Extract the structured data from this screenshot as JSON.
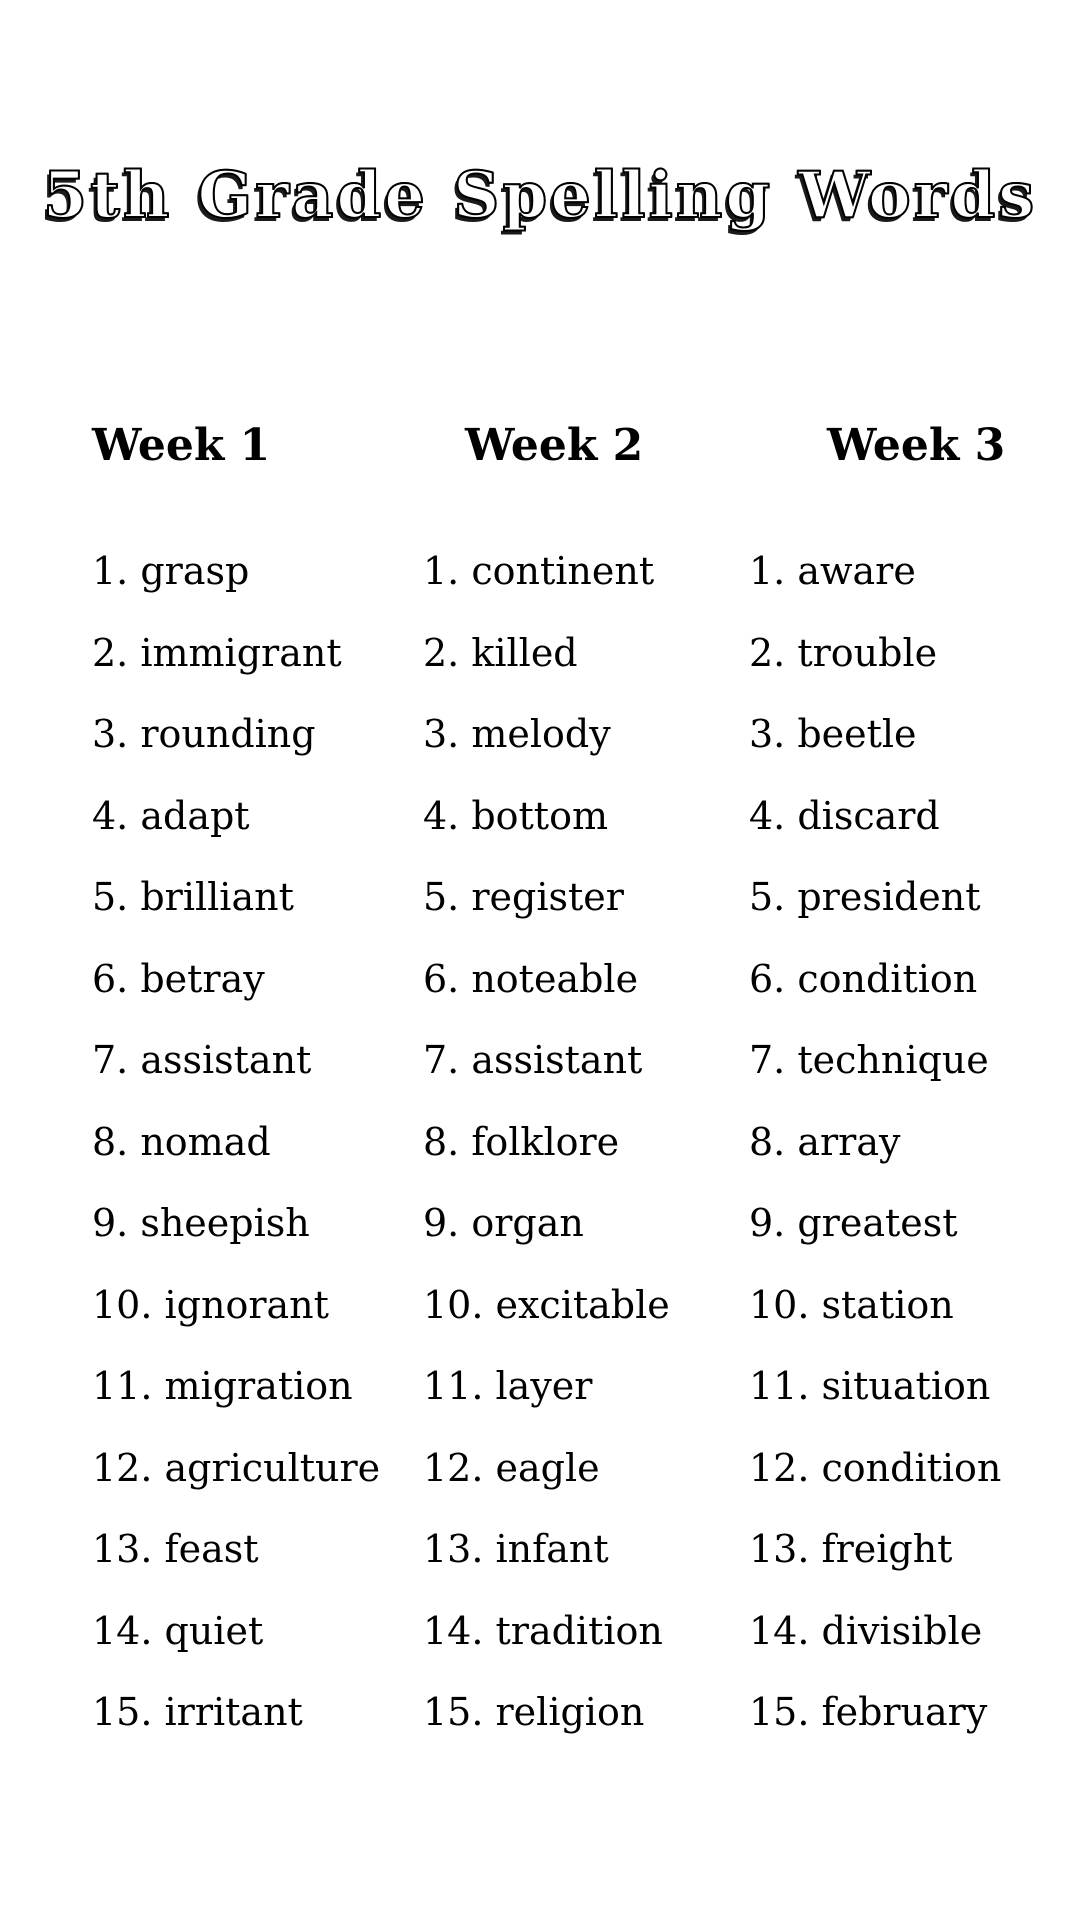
{
  "title": "5th Grade Spelling Words",
  "columns": [
    {
      "header": "Week 1",
      "items": [
        "1. grasp",
        "2. immigrant",
        "3. rounding",
        "4. adapt",
        "5. brilliant",
        "6. betray",
        "7. assistant",
        "8. nomad",
        "9. sheepish",
        "10. ignorant",
        "11. migration",
        "12. agriculture",
        "13. feast",
        "14. quiet",
        "15. irritant"
      ]
    },
    {
      "header": "Week 2",
      "items": [
        "1. continent",
        "2. killed",
        "3. melody",
        "4. bottom",
        "5. register",
        "6. noteable",
        "7. assistant",
        "8. folklore",
        "9. organ",
        "10. excitable",
        "11. layer",
        "12. eagle",
        "13. infant",
        "14. tradition",
        "15. religion"
      ]
    },
    {
      "header": "Week 3",
      "items": [
        "1. aware",
        "2. trouble",
        "3. beetle",
        "4. discard",
        "5. president",
        "6. condition",
        "7. technique",
        "8. array",
        "9. greatest",
        "10. station",
        "11. situation",
        "12. condition",
        "13. freight",
        "14. divisible",
        "15. february"
      ]
    }
  ]
}
